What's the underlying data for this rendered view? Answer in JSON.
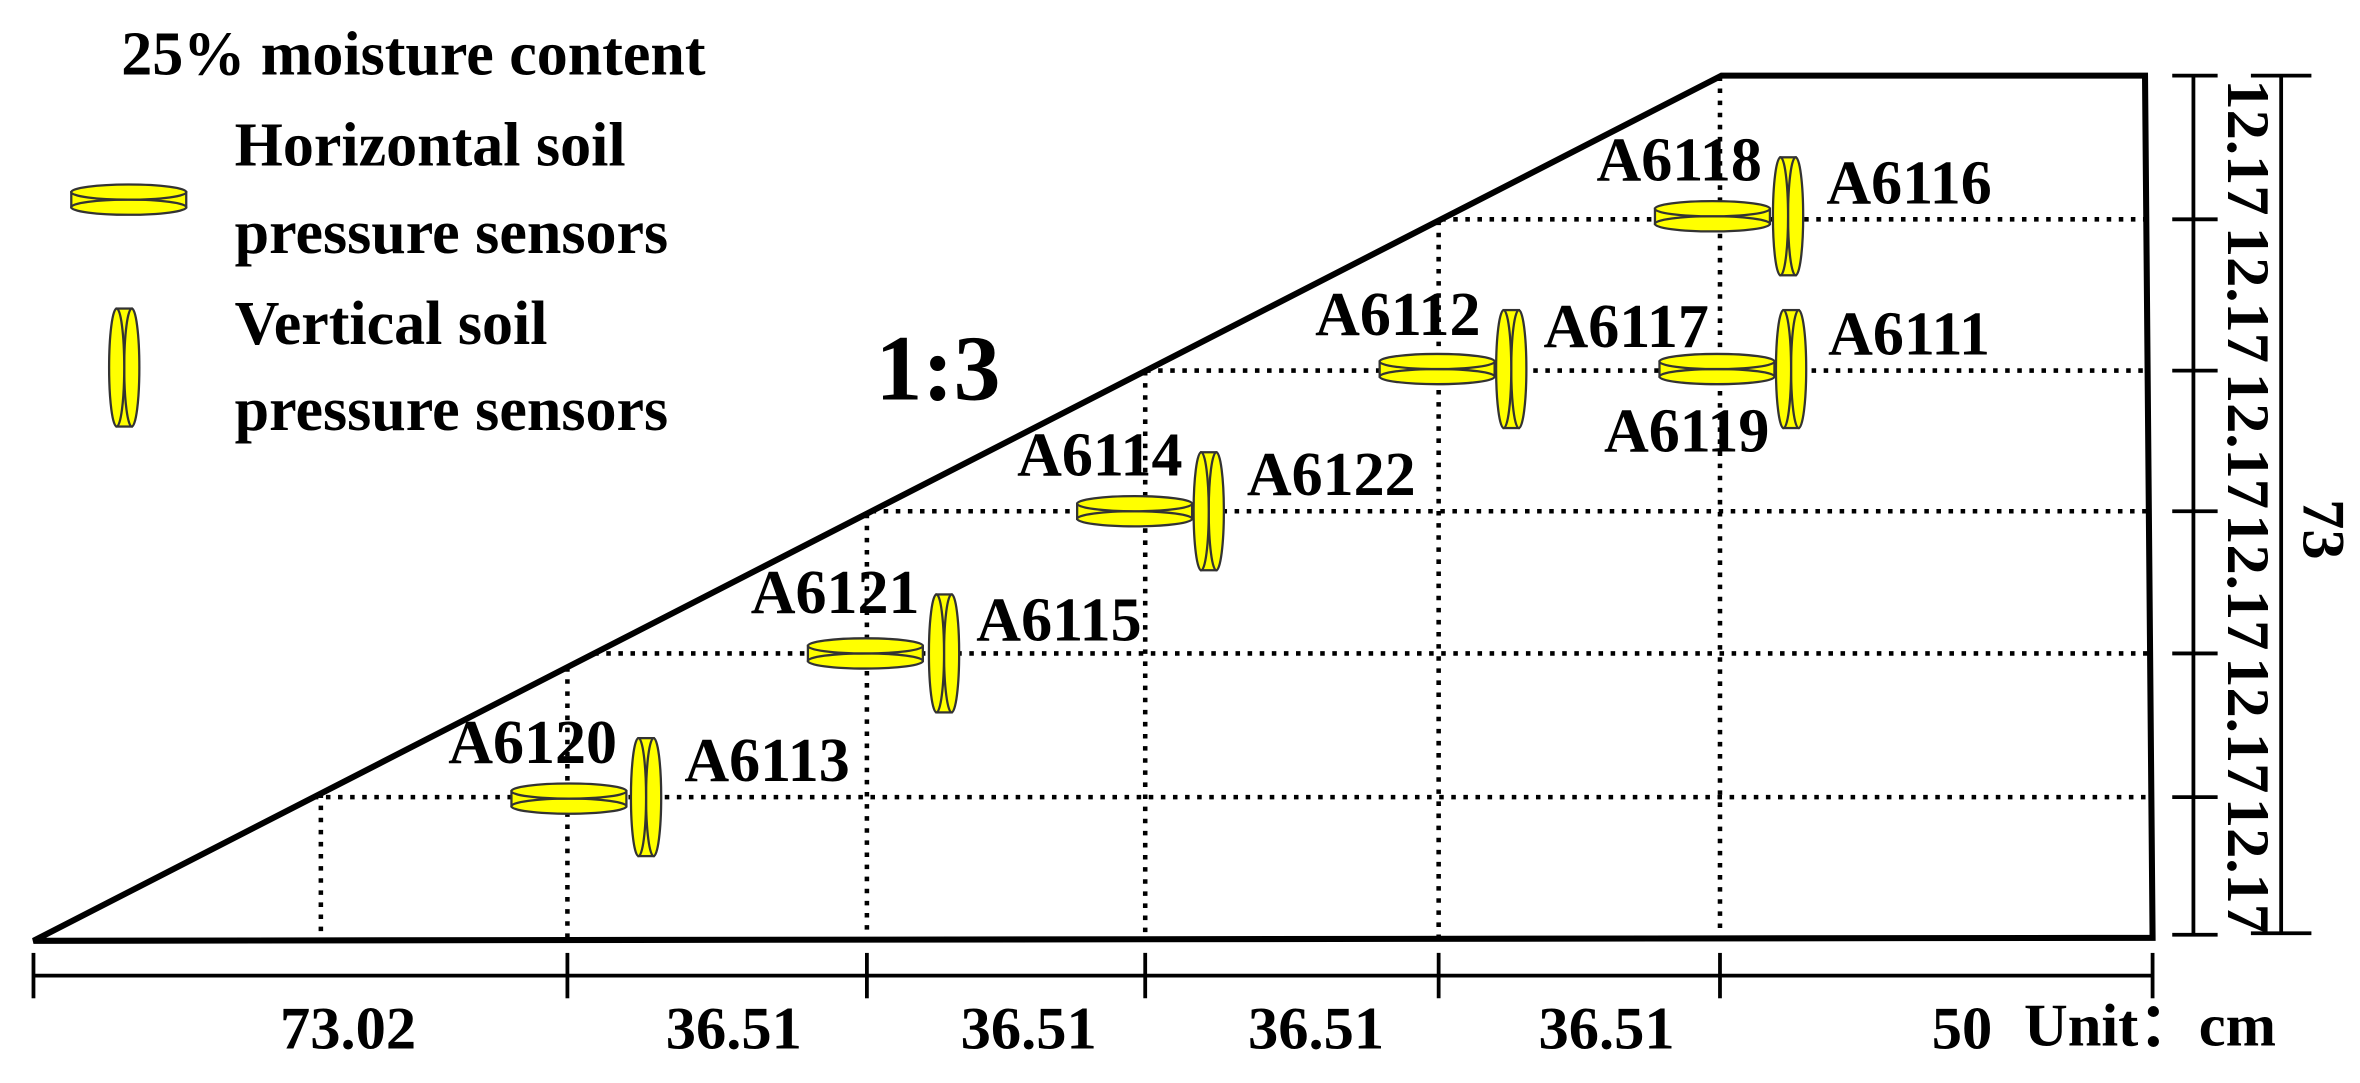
{
  "legend": {
    "title": "25% moisture content",
    "items": [
      {
        "lines": [
          "Horizontal soil",
          "pressure sensors"
        ]
      },
      {
        "lines": [
          "Vertical soil",
          "pressure sensors"
        ]
      }
    ]
  },
  "slope_ratio": "1:3",
  "sensors": [
    "A6120",
    "A6113",
    "A6121",
    "A6115",
    "A6114",
    "A6122",
    "A6112",
    "A6117",
    "A6119",
    "A6111",
    "A6118",
    "A6116"
  ],
  "bottom_dimensions": [
    "73.02",
    "36.51",
    "36.51",
    "36.51",
    "36.51",
    "50"
  ],
  "right_dimensions": [
    "12.17",
    "12.17",
    "12.17",
    "12.17",
    "12.17",
    "12.17"
  ],
  "total_height": "73",
  "unit": "Unit：cm"
}
